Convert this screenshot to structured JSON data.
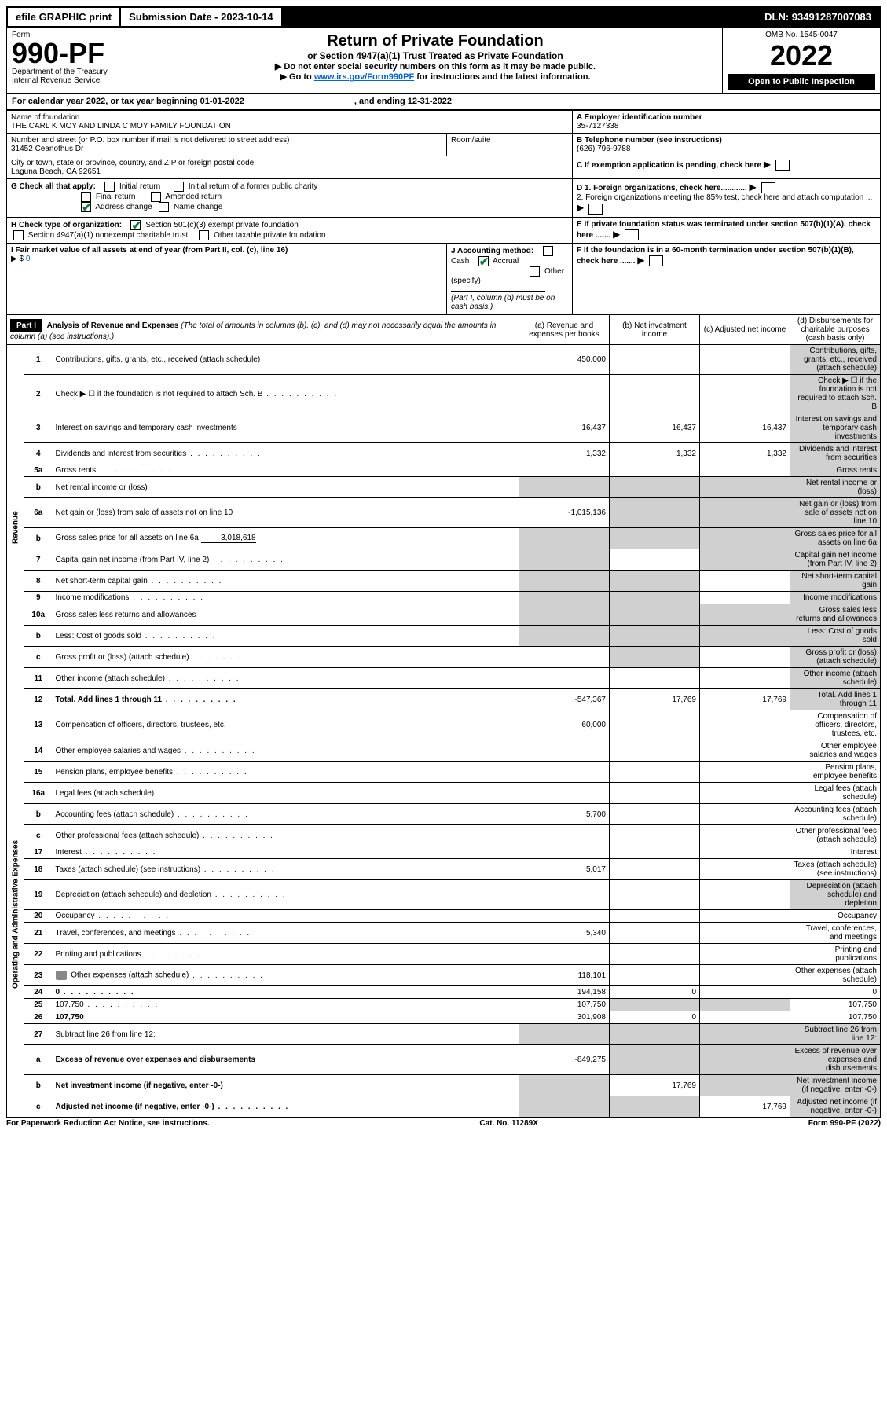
{
  "topbar": {
    "efile": "efile GRAPHIC print",
    "submission_label": "Submission Date - 2023-10-14",
    "dln": "DLN: 93491287007083"
  },
  "header": {
    "form": "Form",
    "form_no": "990-PF",
    "dept": "Department of the Treasury",
    "irs": "Internal Revenue Service",
    "title": "Return of Private Foundation",
    "subtitle": "or Section 4947(a)(1) Trust Treated as Private Foundation",
    "instr1": "▶ Do not enter social security numbers on this form as it may be made public.",
    "instr2_pre": "▶ Go to ",
    "instr2_link": "www.irs.gov/Form990PF",
    "instr2_post": " for instructions and the latest information.",
    "omb": "OMB No. 1545-0047",
    "year": "2022",
    "open": "Open to Public Inspection"
  },
  "calendar": {
    "line": "For calendar year 2022, or tax year beginning 01-01-2022",
    "ending": ", and ending 12-31-2022"
  },
  "id": {
    "name_label": "Name of foundation",
    "name": "THE CARL K MOY AND LINDA C MOY FAMILY FOUNDATION",
    "addr_label": "Number and street (or P.O. box number if mail is not delivered to street address)",
    "addr": "31452 Ceanothus Dr",
    "room_label": "Room/suite",
    "city_label": "City or town, state or province, country, and ZIP or foreign postal code",
    "city": "Laguna Beach, CA  92651",
    "ein_label": "A Employer identification number",
    "ein": "35-7127338",
    "tel_label": "B Telephone number (see instructions)",
    "tel": "(626) 796-9788",
    "c": "C If exemption application is pending, check here",
    "d1": "D 1. Foreign organizations, check here............",
    "d2": "2. Foreign organizations meeting the 85% test, check here and attach computation ...",
    "e": "E If private foundation status was terminated under section 507(b)(1)(A), check here .......",
    "f": "F If the foundation is in a 60-month termination under section 507(b)(1)(B), check here .......",
    "g_label": "G Check all that apply:",
    "g": {
      "initial": "Initial return",
      "initial_former": "Initial return of a former public charity",
      "final": "Final return",
      "amended": "Amended return",
      "address": "Address change",
      "name": "Name change"
    },
    "h_label": "H Check type of organization:",
    "h": {
      "501c3": "Section 501(c)(3) exempt private foundation",
      "4947": "Section 4947(a)(1) nonexempt charitable trust",
      "other_tax": "Other taxable private foundation"
    },
    "i_label": "I Fair market value of all assets at end of year (from Part II, col. (c), line 16)",
    "i_arrow": "▶ $",
    "i_value": "0",
    "j_label": "J Accounting method:",
    "j": {
      "cash": "Cash",
      "accrual": "Accrual",
      "other": "Other (specify)"
    },
    "j_note": "(Part I, column (d) must be on cash basis.)"
  },
  "part1": {
    "label": "Part I",
    "title": "Analysis of Revenue and Expenses",
    "title_note": "(The total of amounts in columns (b), (c), and (d) may not necessarily equal the amounts in column (a) (see instructions).)",
    "cols": {
      "a": "(a) Revenue and expenses per books",
      "b": "(b) Net investment income",
      "c": "(c) Adjusted net income",
      "d": "(d) Disbursements for charitable purposes (cash basis only)"
    },
    "side_revenue": "Revenue",
    "side_expenses": "Operating and Administrative Expenses"
  },
  "rows": [
    {
      "n": "1",
      "d": "Contributions, gifts, grants, etc., received (attach schedule)",
      "a": "450,000",
      "shade_d": true
    },
    {
      "n": "2",
      "d": "Check ▶ ☐ if the foundation is not required to attach Sch. B",
      "dots": true,
      "shade_d": true
    },
    {
      "n": "3",
      "d": "Interest on savings and temporary cash investments",
      "a": "16,437",
      "b": "16,437",
      "c": "16,437",
      "shade_d": true
    },
    {
      "n": "4",
      "d": "Dividends and interest from securities",
      "dots": true,
      "a": "1,332",
      "b": "1,332",
      "c": "1,332",
      "shade_d": true
    },
    {
      "n": "5a",
      "d": "Gross rents",
      "dots": true,
      "shade_d": true
    },
    {
      "n": "b",
      "d": "Net rental income or (loss)",
      "shade_a": true,
      "shade_b": true,
      "shade_c": true,
      "shade_d": true
    },
    {
      "n": "6a",
      "d": "Net gain or (loss) from sale of assets not on line 10",
      "a": "-1,015,136",
      "shade_b": true,
      "shade_c": true,
      "shade_d": true
    },
    {
      "n": "b",
      "d": "Gross sales price for all assets on line 6a",
      "inline": "3,018,618",
      "shade_a": true,
      "shade_b": true,
      "shade_c": true,
      "shade_d": true
    },
    {
      "n": "7",
      "d": "Capital gain net income (from Part IV, line 2)",
      "dots": true,
      "shade_a": true,
      "shade_c": true,
      "shade_d": true
    },
    {
      "n": "8",
      "d": "Net short-term capital gain",
      "dots": true,
      "shade_a": true,
      "shade_b": true,
      "shade_d": true
    },
    {
      "n": "9",
      "d": "Income modifications",
      "dots": true,
      "shade_a": true,
      "shade_b": true,
      "shade_d": true
    },
    {
      "n": "10a",
      "d": "Gross sales less returns and allowances",
      "shade_a": true,
      "shade_b": true,
      "shade_c": true,
      "shade_d": true
    },
    {
      "n": "b",
      "d": "Less: Cost of goods sold",
      "dots": true,
      "shade_a": true,
      "shade_b": true,
      "shade_c": true,
      "shade_d": true
    },
    {
      "n": "c",
      "d": "Gross profit or (loss) (attach schedule)",
      "dots": true,
      "shade_b": true,
      "shade_d": true
    },
    {
      "n": "11",
      "d": "Other income (attach schedule)",
      "dots": true,
      "shade_d": true
    },
    {
      "n": "12",
      "d": "Total. Add lines 1 through 11",
      "dots": true,
      "bold": true,
      "a": "-547,367",
      "b": "17,769",
      "c": "17,769",
      "shade_d": true
    },
    {
      "n": "13",
      "d": "Compensation of officers, directors, trustees, etc.",
      "a": "60,000"
    },
    {
      "n": "14",
      "d": "Other employee salaries and wages",
      "dots": true
    },
    {
      "n": "15",
      "d": "Pension plans, employee benefits",
      "dots": true
    },
    {
      "n": "16a",
      "d": "Legal fees (attach schedule)",
      "dots": true
    },
    {
      "n": "b",
      "d": "Accounting fees (attach schedule)",
      "dots": true,
      "a": "5,700"
    },
    {
      "n": "c",
      "d": "Other professional fees (attach schedule)",
      "dots": true
    },
    {
      "n": "17",
      "d": "Interest",
      "dots": true
    },
    {
      "n": "18",
      "d": "Taxes (attach schedule) (see instructions)",
      "dots": true,
      "a": "5,017"
    },
    {
      "n": "19",
      "d": "Depreciation (attach schedule) and depletion",
      "dots": true,
      "shade_d": true
    },
    {
      "n": "20",
      "d": "Occupancy",
      "dots": true
    },
    {
      "n": "21",
      "d": "Travel, conferences, and meetings",
      "dots": true,
      "a": "5,340"
    },
    {
      "n": "22",
      "d": "Printing and publications",
      "dots": true
    },
    {
      "n": "23",
      "d": "Other expenses (attach schedule)",
      "dots": true,
      "icon": true,
      "a": "118,101"
    },
    {
      "n": "24",
      "d": "0",
      "dots": true,
      "bold": true,
      "a": "194,158",
      "b": "0"
    },
    {
      "n": "25",
      "d": "107,750",
      "dots": true,
      "a": "107,750",
      "shade_b": true,
      "shade_c": true
    },
    {
      "n": "26",
      "d": "107,750",
      "bold": true,
      "a": "301,908",
      "b": "0"
    },
    {
      "n": "27",
      "d": "Subtract line 26 from line 12:",
      "shade_a": true,
      "shade_b": true,
      "shade_c": true,
      "shade_d": true
    },
    {
      "n": "a",
      "d": "Excess of revenue over expenses and disbursements",
      "bold": true,
      "a": "-849,275",
      "shade_b": true,
      "shade_c": true,
      "shade_d": true
    },
    {
      "n": "b",
      "d": "Net investment income (if negative, enter -0-)",
      "bold": true,
      "shade_a": true,
      "b": "17,769",
      "shade_c": true,
      "shade_d": true
    },
    {
      "n": "c",
      "d": "Adjusted net income (if negative, enter -0-)",
      "dots": true,
      "bold": true,
      "shade_a": true,
      "shade_b": true,
      "c": "17,769",
      "shade_d": true
    }
  ],
  "footer": {
    "left": "For Paperwork Reduction Act Notice, see instructions.",
    "mid": "Cat. No. 11289X",
    "right": "Form 990-PF (2022)"
  }
}
